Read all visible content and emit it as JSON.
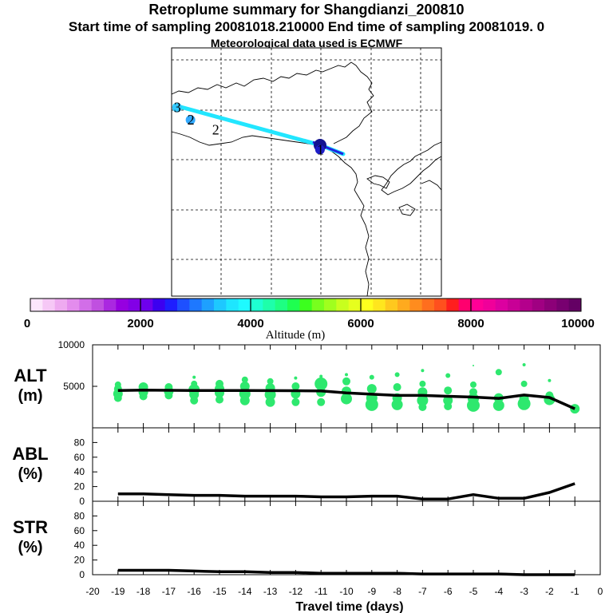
{
  "header": {
    "title": "Retroplume summary for Shangdianzi_200810",
    "subtitle": "Start time of sampling 20081018.210000      End time of sampling 20081019.      0",
    "met": "Meteorological data used is ECMWF"
  },
  "map": {
    "points": [
      {
        "label": "1",
        "color": "#1e1ec8",
        "lon_frac": 0.55,
        "lat_frac": 0.41
      },
      {
        "label": "2",
        "color": "#32aaff",
        "lon_frac": 0.07,
        "lat_frac": 0.29
      },
      {
        "label": "2",
        "color": "#ffffff",
        "lon_frac": 0.15,
        "lat_frac": 0.33
      },
      {
        "label": "3",
        "color": "#32c8ff",
        "lon_frac": 0.02,
        "lat_frac": 0.24
      }
    ]
  },
  "colorbar": {
    "tick_labels": [
      "0",
      "2000",
      "4000",
      "6000",
      "8000",
      "10000"
    ],
    "axis_label": "Altitude (m)",
    "colors": [
      "#fce6fc",
      "#f6c8f6",
      "#eeaaf0",
      "#e38ced",
      "#d26ee8",
      "#c050e0",
      "#aa28e0",
      "#9600e0",
      "#8200e6",
      "#6e00ec",
      "#3c00f0",
      "#1e1eff",
      "#1e50ff",
      "#1e78ff",
      "#1ea0ff",
      "#1ec8ff",
      "#1ee6ff",
      "#1efaff",
      "#1effd2",
      "#1effaa",
      "#1eff82",
      "#1eff50",
      "#3cff1e",
      "#78ff1e",
      "#a0ff1e",
      "#c8ff1e",
      "#e6ff1e",
      "#ffff1e",
      "#ffe61e",
      "#ffc81e",
      "#ffaa1e",
      "#ff8c1e",
      "#ff6e1e",
      "#ff501e",
      "#ff1e1e",
      "#ff006e",
      "#ff0096",
      "#f0009a",
      "#dc00a0",
      "#c80096",
      "#b4008c",
      "#a00082",
      "#8c0078",
      "#780070",
      "#640064"
    ]
  },
  "chart_data": [
    {
      "type": "line",
      "name": "ALT",
      "ylabel_top": "ALT",
      "ylabel_bottom": "(m)",
      "x": [
        -19,
        -18,
        -17,
        -16,
        -15,
        -14,
        -13,
        -12,
        -11,
        -10,
        -9,
        -8,
        -7,
        -6,
        -5,
        -4,
        -3,
        -2,
        -1
      ],
      "values": [
        4500,
        4550,
        4520,
        4500,
        4500,
        4500,
        4480,
        4470,
        4450,
        4200,
        4050,
        3900,
        3900,
        3800,
        3700,
        3550,
        3950,
        3650,
        2300
      ],
      "ylim": [
        0,
        10000
      ],
      "yticks": [
        "10000",
        "5000"
      ],
      "ytick_values": [
        10000,
        5000
      ],
      "scatter": [
        [
          -19,
          3600,
          5
        ],
        [
          -19,
          4100,
          6
        ],
        [
          -19,
          4700,
          5
        ],
        [
          -19,
          5200,
          4
        ],
        [
          -18,
          3800,
          5
        ],
        [
          -18,
          4300,
          6
        ],
        [
          -18,
          4900,
          6
        ],
        [
          -17,
          3900,
          5
        ],
        [
          -17,
          4400,
          6
        ],
        [
          -17,
          4900,
          5
        ],
        [
          -16,
          3300,
          5
        ],
        [
          -16,
          4000,
          6
        ],
        [
          -16,
          4600,
          7
        ],
        [
          -16,
          5300,
          4
        ],
        [
          -16,
          6100,
          2
        ],
        [
          -15,
          3400,
          5
        ],
        [
          -15,
          4200,
          6
        ],
        [
          -15,
          4700,
          6
        ],
        [
          -15,
          5300,
          5
        ],
        [
          -14,
          3300,
          6
        ],
        [
          -14,
          4100,
          7
        ],
        [
          -14,
          5000,
          6
        ],
        [
          -14,
          5800,
          4
        ],
        [
          -13,
          3100,
          6
        ],
        [
          -13,
          4000,
          7
        ],
        [
          -13,
          4800,
          6
        ],
        [
          -13,
          5600,
          4
        ],
        [
          -12,
          3100,
          5
        ],
        [
          -12,
          4100,
          6
        ],
        [
          -12,
          5000,
          5
        ],
        [
          -12,
          6000,
          2
        ],
        [
          -11,
          3100,
          5
        ],
        [
          -11,
          4300,
          6
        ],
        [
          -11,
          5300,
          8
        ],
        [
          -11,
          6200,
          2
        ],
        [
          -10,
          3500,
          7
        ],
        [
          -10,
          4400,
          6
        ],
        [
          -10,
          5600,
          5
        ],
        [
          -10,
          6400,
          2
        ],
        [
          -9,
          2800,
          8
        ],
        [
          -9,
          3600,
          7
        ],
        [
          -9,
          4700,
          6
        ],
        [
          -9,
          6100,
          3
        ],
        [
          -8,
          2800,
          7
        ],
        [
          -8,
          3600,
          6
        ],
        [
          -8,
          4900,
          5
        ],
        [
          -8,
          6400,
          3
        ],
        [
          -7,
          2500,
          5
        ],
        [
          -7,
          3300,
          7
        ],
        [
          -7,
          4300,
          6
        ],
        [
          -7,
          5300,
          4
        ],
        [
          -7,
          6900,
          2
        ],
        [
          -6,
          2600,
          5
        ],
        [
          -6,
          3300,
          6
        ],
        [
          -6,
          4500,
          5
        ],
        [
          -6,
          6300,
          3
        ],
        [
          -5,
          2700,
          8
        ],
        [
          -5,
          3500,
          7
        ],
        [
          -5,
          4300,
          5
        ],
        [
          -5,
          5200,
          4
        ],
        [
          -5,
          7500,
          1
        ],
        [
          -4,
          2700,
          7
        ],
        [
          -4,
          3600,
          6
        ],
        [
          -4,
          6700,
          4
        ],
        [
          -3,
          2900,
          8
        ],
        [
          -3,
          3500,
          6
        ],
        [
          -3,
          5300,
          4
        ],
        [
          -3,
          7600,
          2
        ],
        [
          -2,
          3400,
          7
        ],
        [
          -2,
          3900,
          5
        ],
        [
          -2,
          5700,
          2
        ],
        [
          -1,
          2300,
          6
        ]
      ]
    },
    {
      "type": "line",
      "name": "ABL",
      "ylabel_top": "ABL",
      "ylabel_bottom": "(%)",
      "x": [
        -19,
        -18,
        -17,
        -16,
        -15,
        -14,
        -13,
        -12,
        -11,
        -10,
        -9,
        -8,
        -7,
        -6,
        -5,
        -4,
        -3,
        -2,
        -1
      ],
      "values": [
        10,
        10,
        9,
        8,
        8,
        7,
        7,
        7,
        6,
        6,
        7,
        7,
        3,
        3,
        9,
        4,
        4,
        12,
        24
      ],
      "ylim": [
        0,
        100
      ],
      "yticks": [
        "80",
        "60",
        "40",
        "20",
        "0"
      ],
      "ytick_values": [
        80,
        60,
        40,
        20,
        0
      ]
    },
    {
      "type": "line",
      "name": "STR",
      "ylabel_top": "STR",
      "ylabel_bottom": "(%)",
      "x": [
        -19,
        -18,
        -17,
        -16,
        -15,
        -14,
        -13,
        -12,
        -11,
        -10,
        -9,
        -8,
        -7,
        -6,
        -5,
        -4,
        -3,
        -2,
        -1
      ],
      "values": [
        6,
        6,
        6,
        5,
        4,
        4,
        3,
        3,
        2,
        2,
        2,
        2,
        1,
        1,
        1,
        1,
        0,
        0,
        0
      ],
      "ylim": [
        0,
        100
      ],
      "yticks": [
        "80",
        "60",
        "40",
        "20",
        "0"
      ],
      "ytick_values": [
        80,
        60,
        40,
        20,
        0
      ]
    }
  ],
  "xaxis": {
    "tick_labels": [
      "-20",
      "-19",
      "-18",
      "-17",
      "-16",
      "-15",
      "-14",
      "-13",
      "-12",
      "-11",
      "-10",
      "-9",
      "-8",
      "-7",
      "-6",
      "-5",
      "-4",
      "-3",
      "-2",
      "-1",
      "0"
    ],
    "tick_values": [
      -20,
      -19,
      -18,
      -17,
      -16,
      -15,
      -14,
      -13,
      -12,
      -11,
      -10,
      -9,
      -8,
      -7,
      -6,
      -5,
      -4,
      -3,
      -2,
      -1,
      0
    ],
    "label": "Travel time (days)",
    "xlim": [
      -20,
      0
    ]
  }
}
